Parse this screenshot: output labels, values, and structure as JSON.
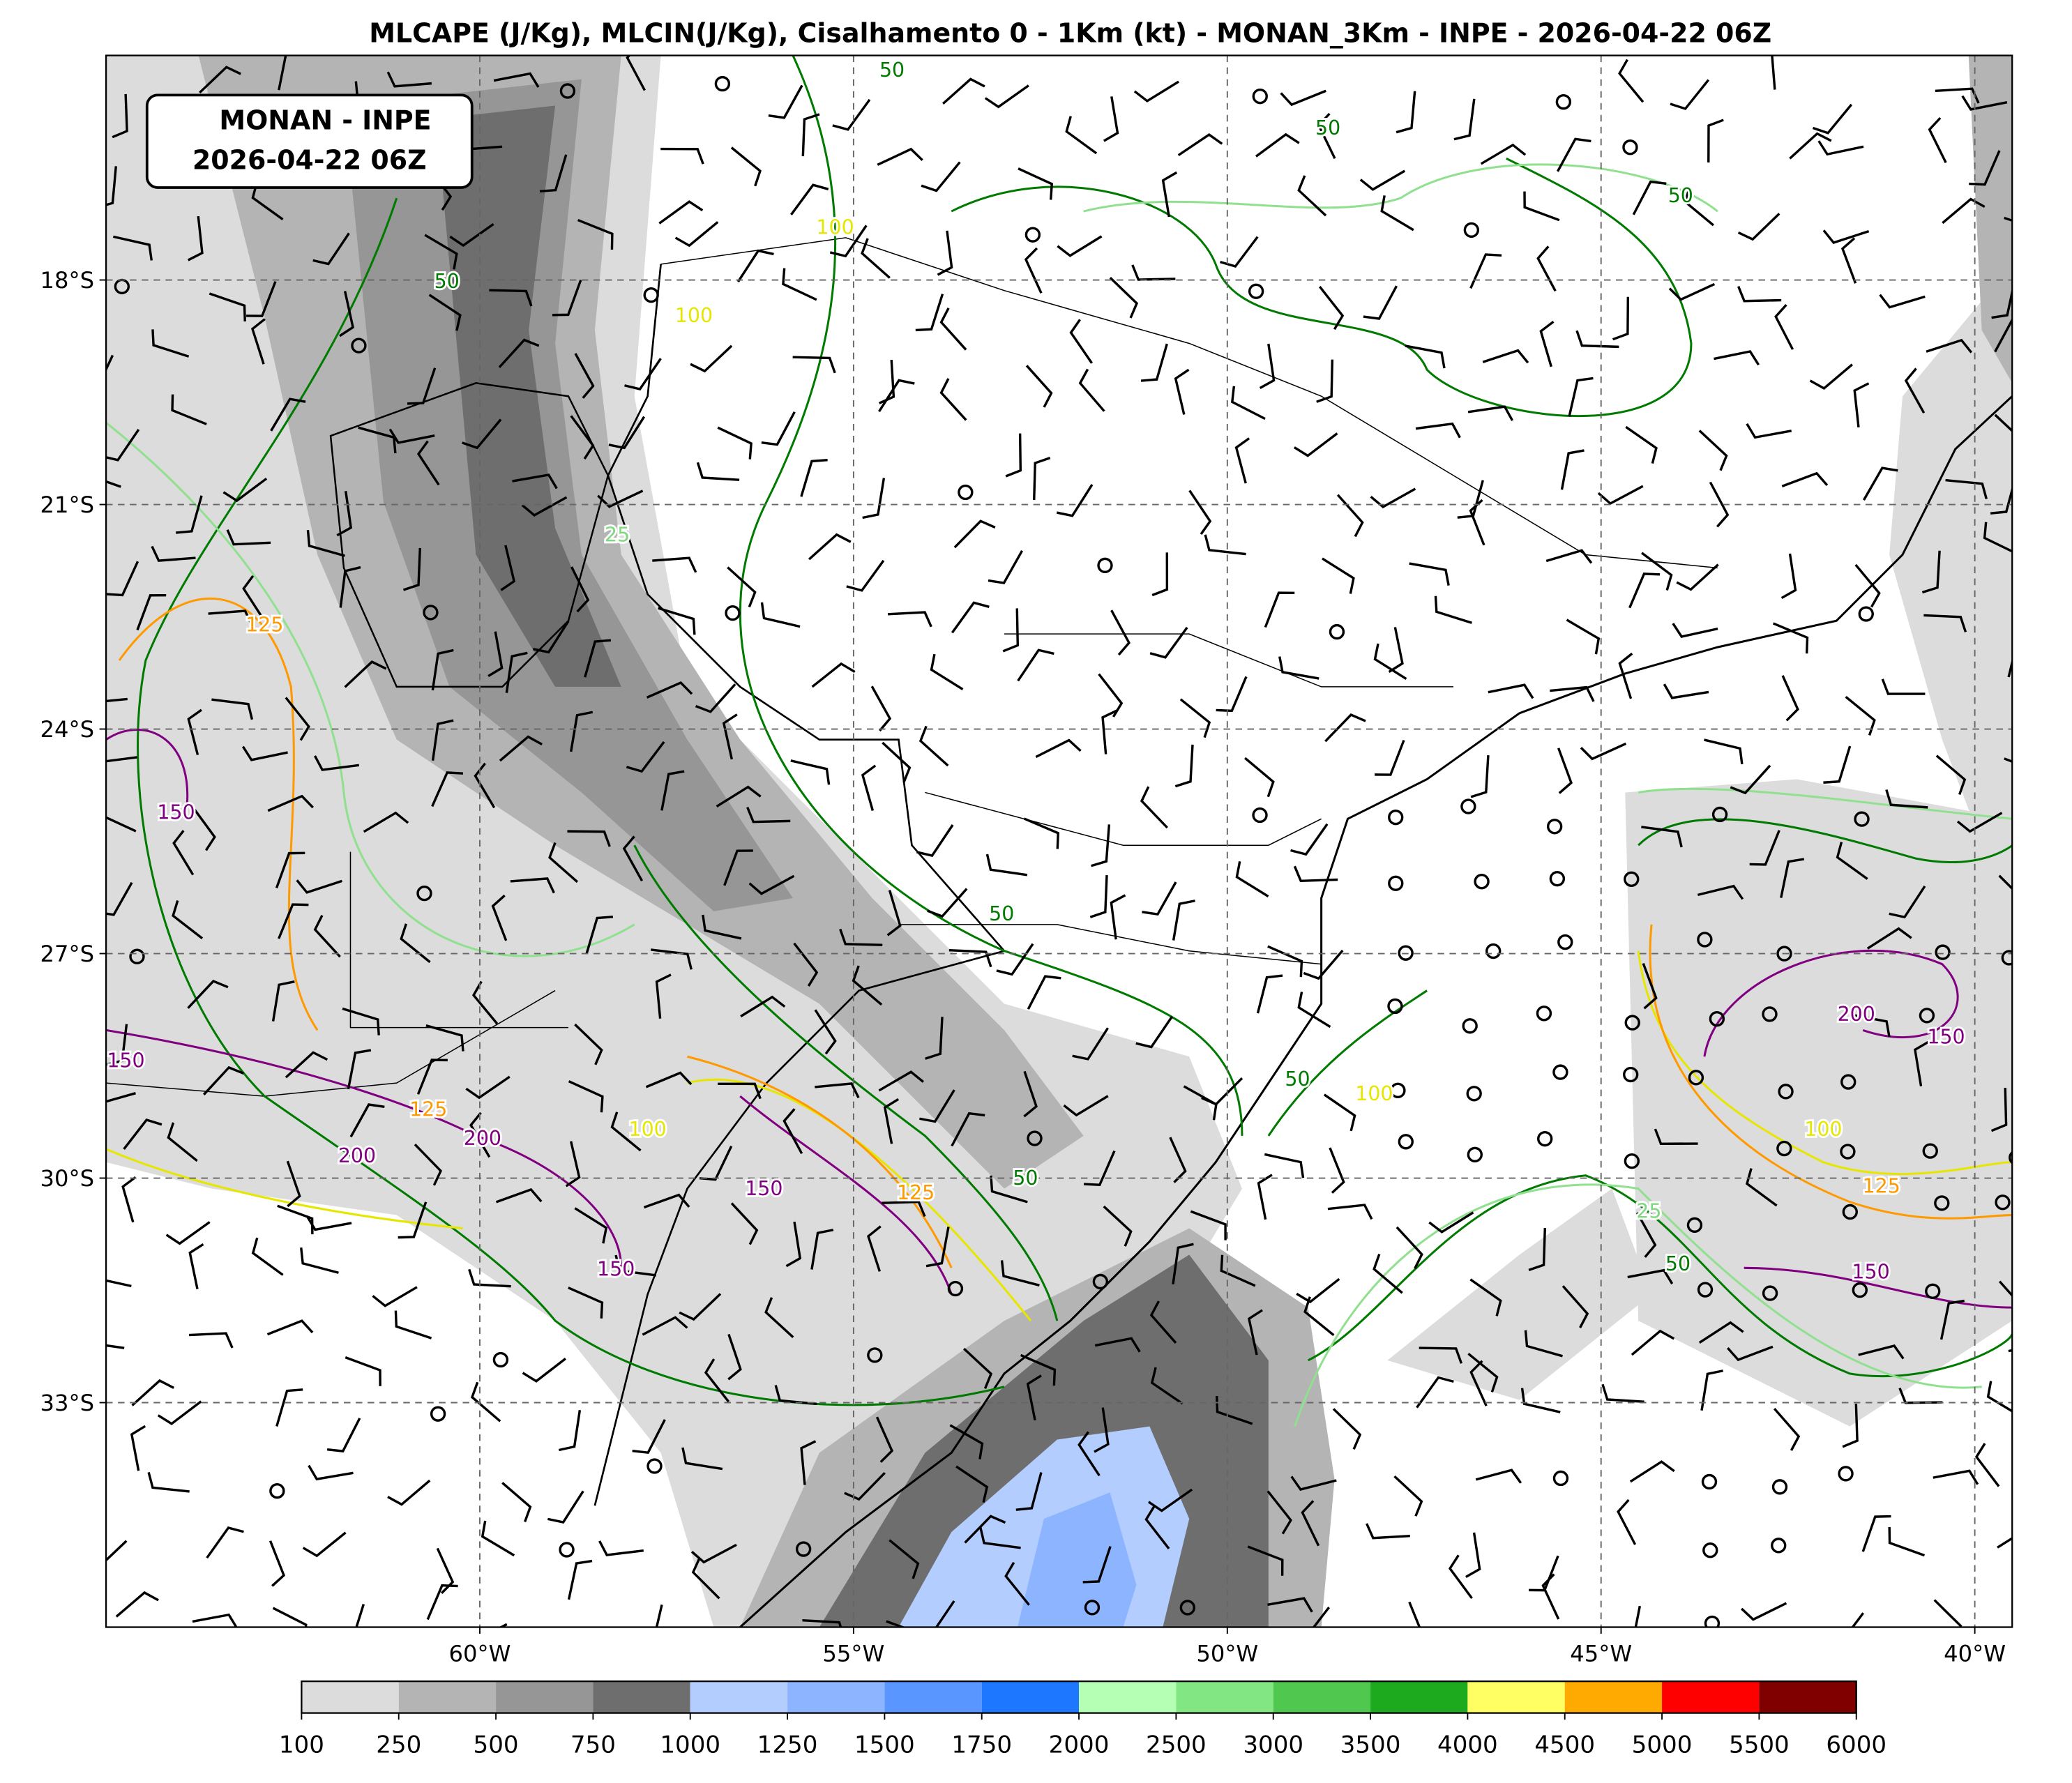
{
  "title": "MLCAPE (J/Kg), MLCIN(J/Kg), Cisalhamento 0 - 1Km (kt) - MONAN_3Km - INPE - 2026-04-22 06Z",
  "info_box": {
    "line1": "MONAN - INPE",
    "line2": "2026-04-22 06Z"
  },
  "map": {
    "lon_range": [
      -65,
      -39.5
    ],
    "lat_range": [
      -36,
      -15
    ],
    "lat_ticks": [
      {
        "value": -18,
        "label": "18°S"
      },
      {
        "value": -21,
        "label": "21°S"
      },
      {
        "value": -24,
        "label": "24°S"
      },
      {
        "value": -27,
        "label": "27°S"
      },
      {
        "value": -30,
        "label": "30°S"
      },
      {
        "value": -33,
        "label": "33°S"
      }
    ],
    "lon_ticks": [
      {
        "value": -60,
        "label": "60°W"
      },
      {
        "value": -55,
        "label": "55°W"
      },
      {
        "value": -50,
        "label": "50°W"
      },
      {
        "value": -45,
        "label": "45°W"
      },
      {
        "value": -40,
        "label": "40°W"
      }
    ],
    "grid": true
  },
  "contour_labels": [
    "50",
    "50",
    "50",
    "50",
    "50",
    "50",
    "50",
    "50",
    "25",
    "25",
    "100",
    "100",
    "100",
    "100",
    "100",
    "125",
    "125",
    "125",
    "125",
    "150",
    "150",
    "150",
    "150",
    "150",
    "150",
    "200",
    "200",
    "200"
  ],
  "colorbar": {
    "ticks": [
      100,
      250,
      500,
      750,
      1000,
      1250,
      1500,
      1750,
      2000,
      2500,
      3000,
      3500,
      4000,
      4500,
      5000,
      5500,
      6000
    ],
    "colors": [
      "#dcdcdc",
      "#b4b4b4",
      "#969696",
      "#6e6e6e",
      "#b4cdff",
      "#8cb4ff",
      "#5a96ff",
      "#1e78ff",
      "#b4ffb4",
      "#82e682",
      "#50c850",
      "#1eaa1e",
      "#ffff64",
      "#ffaa00",
      "#ff0000",
      "#800000"
    ]
  }
}
